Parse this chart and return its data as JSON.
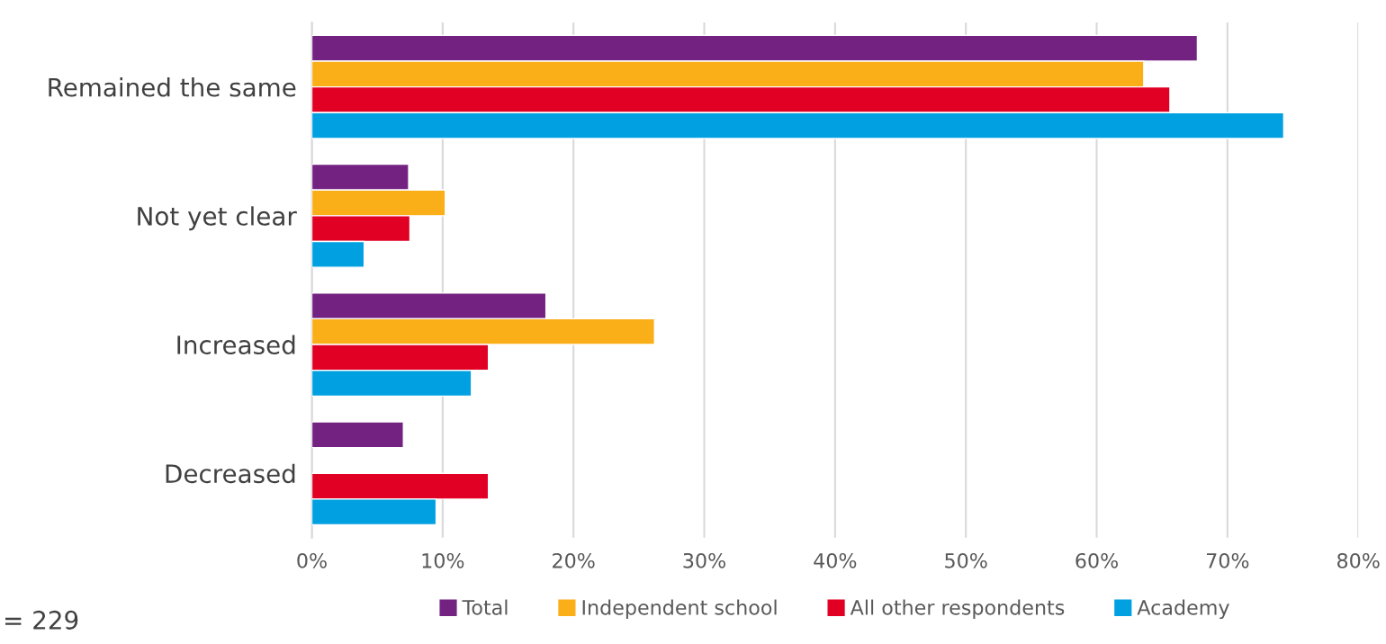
{
  "chart_data": {
    "type": "bar",
    "orientation": "horizontal",
    "categories": [
      "Remained the same",
      "Not yet clear",
      "Increased",
      "Decreased"
    ],
    "series": [
      {
        "name": "Total",
        "color": "#732282",
        "values": [
          67.7,
          7.4,
          17.9,
          7.0
        ]
      },
      {
        "name": "Independent school",
        "color": "#faaf19",
        "values": [
          63.6,
          10.2,
          26.2,
          null
        ]
      },
      {
        "name": "All other respondents",
        "color": "#e10024",
        "values": [
          65.6,
          7.5,
          13.5,
          13.5
        ]
      },
      {
        "name": "Academy",
        "color": "#00a0e1",
        "values": [
          74.3,
          4.0,
          12.2,
          9.5
        ]
      }
    ],
    "xlim": [
      0,
      80
    ],
    "xticks": [
      {
        "value": 0,
        "label": "0%"
      },
      {
        "value": 10,
        "label": "10%"
      },
      {
        "value": 20,
        "label": "20%"
      },
      {
        "value": 30,
        "label": "30%"
      },
      {
        "value": 40,
        "label": "40%"
      },
      {
        "value": 50,
        "label": "50%"
      },
      {
        "value": 60,
        "label": "60%"
      },
      {
        "value": 70,
        "label": "70%"
      },
      {
        "value": 80,
        "label": "80%"
      }
    ],
    "grid": "x",
    "legend": "bottom",
    "annotations": [
      "= 229"
    ]
  }
}
